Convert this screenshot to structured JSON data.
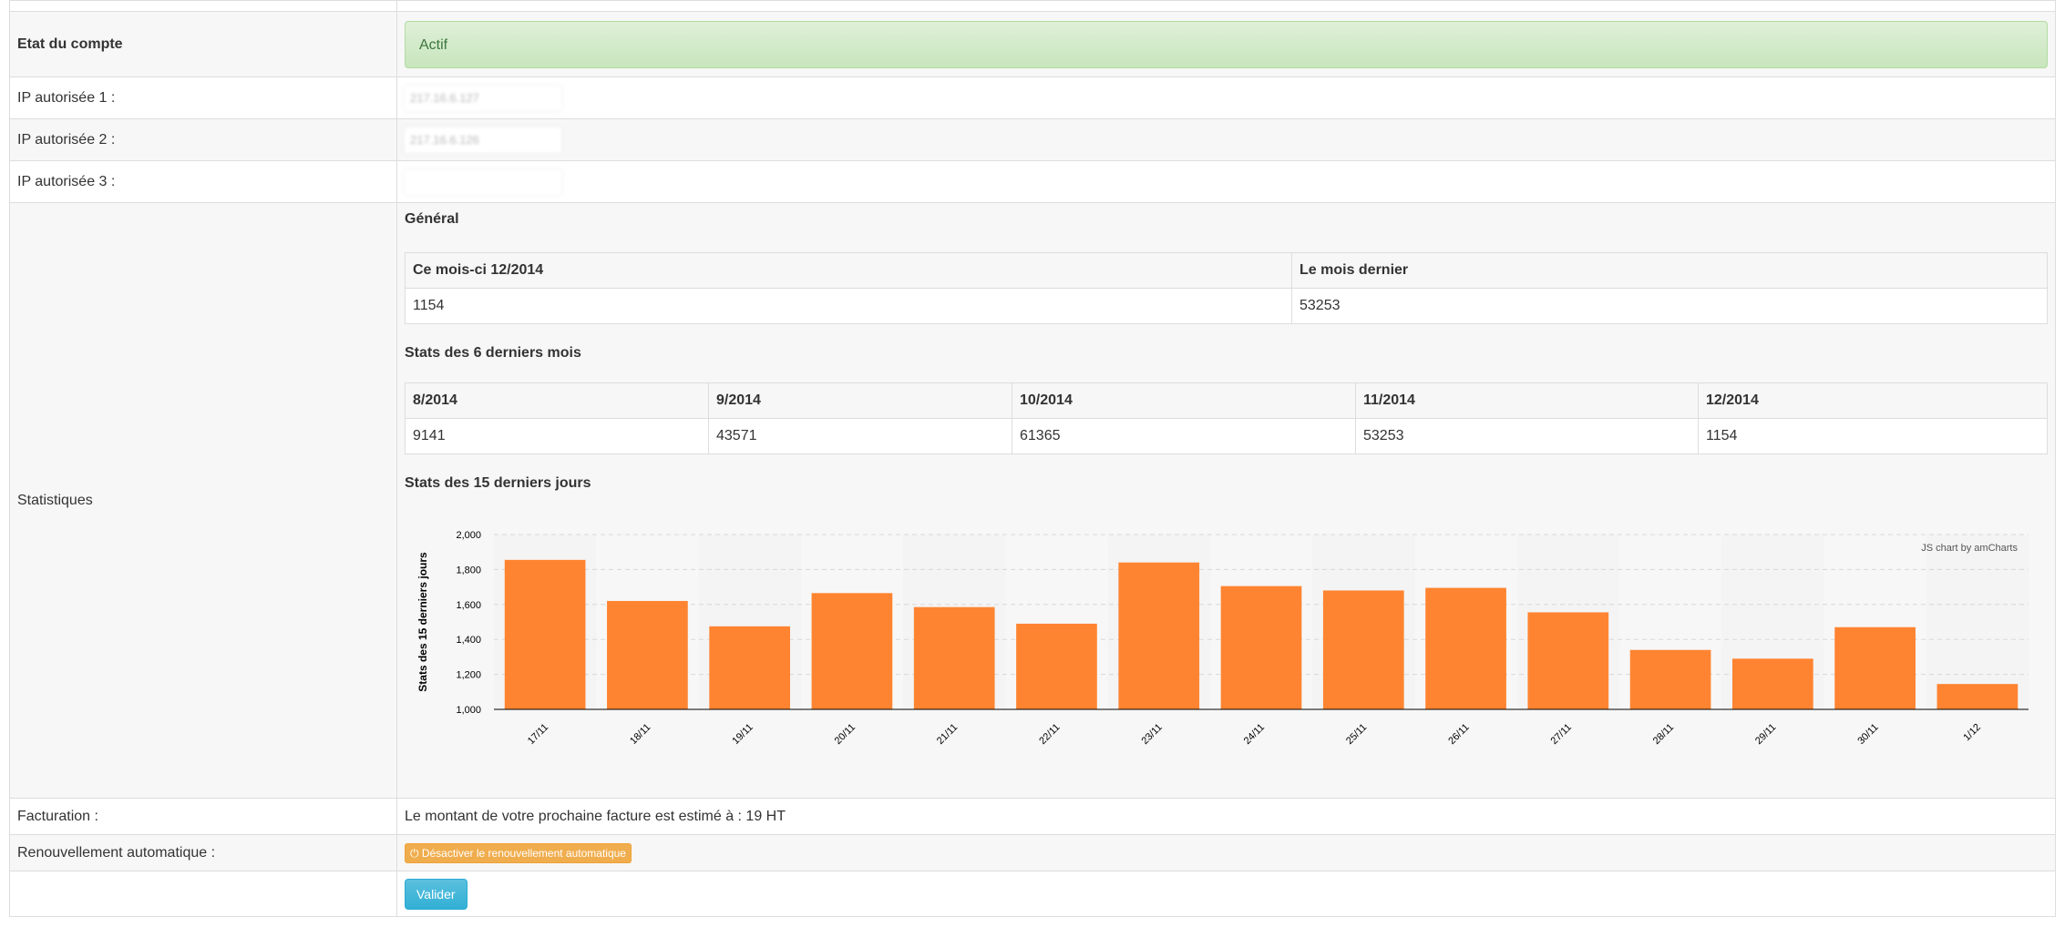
{
  "account": {
    "status_label": "Etat du compte",
    "status_value": "Actif",
    "ip1_label": "IP autorisée 1 :",
    "ip1_value": "217.16.6.127",
    "ip2_label": "IP autorisée 2 :",
    "ip2_value": "217.16.6.126",
    "ip3_label": "IP autorisée 3 :",
    "ip3_value": ""
  },
  "statistics": {
    "label": "Statistiques",
    "general_title": "Général",
    "general_headers": [
      "Ce mois-ci 12/2014",
      "Le mois dernier"
    ],
    "general_values": [
      "1154",
      "53253"
    ],
    "six_months_title": "Stats des 6 derniers mois",
    "six_months_headers": [
      "8/2014",
      "9/2014",
      "10/2014",
      "11/2014",
      "12/2014"
    ],
    "six_months_values": [
      "9141",
      "43571",
      "61365",
      "53253",
      "1154"
    ],
    "fifteen_days_title": "Stats des 15 derniers jours"
  },
  "chart_data": {
    "type": "bar",
    "title": "",
    "xlabel": "",
    "ylabel": "Stats des 15 derniers jours",
    "credit": "JS chart by amCharts",
    "categories": [
      "17/11",
      "18/11",
      "19/11",
      "20/11",
      "21/11",
      "22/11",
      "23/11",
      "24/11",
      "25/11",
      "26/11",
      "27/11",
      "28/11",
      "29/11",
      "30/11",
      "1/12"
    ],
    "values": [
      1855,
      1620,
      1475,
      1665,
      1585,
      1490,
      1840,
      1705,
      1680,
      1695,
      1555,
      1340,
      1290,
      1470,
      1145
    ],
    "ylim": [
      1000,
      2000
    ],
    "yticks": [
      "1,000",
      "1,200",
      "1,400",
      "1,600",
      "1,800",
      "2,000"
    ],
    "ytick_values": [
      1000,
      1200,
      1400,
      1600,
      1800,
      2000
    ],
    "bar_color": "#FF8431",
    "grid": true
  },
  "billing": {
    "label": "Facturation :",
    "text": "Le montant de votre prochaine facture est estimé à : 19 HT"
  },
  "renewal": {
    "label": "Renouvellement automatique :",
    "button_label": "Désactiver le renouvellement automatique",
    "icon": "power-icon"
  },
  "submit": {
    "label": "Valider"
  },
  "colors": {
    "success_bg": "#dff0d8",
    "success_text": "#3c763d",
    "warning": "#f0ad4e",
    "info": "#5bc0de",
    "bar": "#FF8431"
  }
}
